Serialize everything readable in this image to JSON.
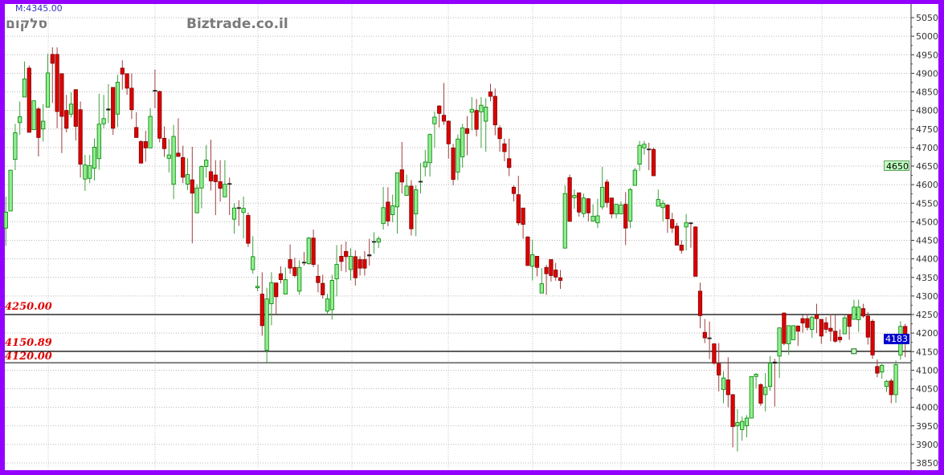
{
  "header": {
    "partial_label": "M:4345.00",
    "symbol": "סלקום",
    "watermark": "Biztrade.co.il"
  },
  "colors": {
    "frame": "#9400ff",
    "up_fill": "#90ee90",
    "up_edge": "#008000",
    "down_fill": "#dd0000",
    "down_edge": "#800000",
    "level_text": "#e00000",
    "last_price_bg": "#0000cc",
    "marker_bg": "#c0ffc0"
  },
  "chart_data": {
    "type": "candlestick",
    "title": "",
    "ylim": [
      3850,
      5050
    ],
    "y_ticks": [
      3850,
      3900,
      3950,
      4000,
      4050,
      4100,
      4150,
      4200,
      4250,
      4300,
      4350,
      4400,
      4450,
      4500,
      4550,
      4600,
      4650,
      4700,
      4750,
      4800,
      4850,
      4900,
      4950,
      5000,
      5050
    ],
    "grid": true,
    "y_axis_side": "right",
    "levels": [
      {
        "label": "4250.00",
        "value": 4250.0,
        "color": "#000000"
      },
      {
        "label": "4150.89",
        "value": 4150.89,
        "color": "#000000"
      },
      {
        "label": "4120.00",
        "value": 4120.0,
        "color": "#808080"
      }
    ],
    "axis_tags": [
      {
        "label": "4650",
        "value": 4650,
        "style": "marker"
      },
      {
        "label": "4183",
        "value": 4183,
        "style": "last"
      }
    ],
    "marker": {
      "candle": 183,
      "price": 4151
    },
    "ohlc_order": [
      "open",
      "high",
      "low",
      "close"
    ],
    "candles": [
      [
        4483,
        4568,
        4435,
        4526
      ],
      [
        4529,
        4640,
        4529,
        4639
      ],
      [
        4668,
        4764,
        4639,
        4740
      ],
      [
        4767,
        4824,
        4734,
        4783
      ],
      [
        4836,
        4932,
        4836,
        4885
      ],
      [
        4914,
        4921,
        4741,
        4741
      ],
      [
        4748,
        4826,
        4748,
        4826
      ],
      [
        4804,
        4809,
        4676,
        4727
      ],
      [
        4750,
        4817,
        4716,
        4771
      ],
      [
        4809,
        4953,
        4809,
        4901
      ],
      [
        4951,
        4970,
        4820,
        4927
      ],
      [
        4951,
        4970,
        4752,
        4797
      ],
      [
        4899,
        4899,
        4685,
        4784
      ],
      [
        4800,
        4842,
        4741,
        4752
      ],
      [
        4790,
        4849,
        4781,
        4817
      ],
      [
        4856,
        4856,
        4719,
        4757
      ],
      [
        4802,
        4824,
        4619,
        4655
      ],
      [
        4615,
        4680,
        4583,
        4653
      ],
      [
        4617,
        4680,
        4604,
        4651
      ],
      [
        4644,
        4725,
        4611,
        4701
      ],
      [
        4670,
        4845,
        4640,
        4763
      ],
      [
        4764,
        4842,
        4752,
        4778
      ],
      [
        4801,
        4871,
        4766,
        4804
      ],
      [
        4862,
        4863,
        4734,
        4752
      ],
      [
        4790,
        4896,
        4755,
        4876
      ],
      [
        4914,
        4935,
        4856,
        4898
      ],
      [
        4899,
        4899,
        4842,
        4860
      ],
      [
        4860,
        4900,
        4777,
        4802
      ],
      [
        4754,
        4795,
        4727,
        4727
      ],
      [
        4716,
        4720,
        4658,
        4658
      ],
      [
        4716,
        4745,
        4662,
        4699
      ],
      [
        4699,
        4806,
        4699,
        4784
      ],
      [
        4854,
        4910,
        4806,
        4853
      ],
      [
        4851,
        4853,
        4714,
        4725
      ],
      [
        4725,
        4757,
        4675,
        4697
      ],
      [
        4671,
        4723,
        4633,
        4680
      ],
      [
        4601,
        4761,
        4561,
        4730
      ],
      [
        4685,
        4779,
        4676,
        4676
      ],
      [
        4673,
        4705,
        4604,
        4620
      ],
      [
        4601,
        4671,
        4586,
        4627
      ],
      [
        4613,
        4702,
        4442,
        4577
      ],
      [
        4524,
        4601,
        4524,
        4591
      ],
      [
        4591,
        4651,
        4536,
        4649
      ],
      [
        4649,
        4707,
        4619,
        4666
      ],
      [
        4635,
        4721,
        4584,
        4610
      ],
      [
        4626,
        4666,
        4518,
        4608
      ],
      [
        4608,
        4666,
        4554,
        4590
      ],
      [
        4567,
        4666,
        4567,
        4601
      ],
      [
        4603,
        4619,
        4518,
        4602
      ],
      [
        4507,
        4550,
        4468,
        4537
      ],
      [
        4538,
        4558,
        4489,
        4536
      ],
      [
        4525,
        4568,
        4455,
        4536
      ],
      [
        4517,
        4525,
        4432,
        4442
      ],
      [
        4371,
        4461,
        4360,
        4406
      ],
      [
        4322,
        4353,
        4313,
        4326
      ],
      [
        4305,
        4364,
        4193,
        4220
      ],
      [
        4154,
        4322,
        4119,
        4292
      ],
      [
        4279,
        4364,
        4221,
        4336
      ],
      [
        4335,
        4335,
        4252,
        4298
      ],
      [
        4360,
        4380,
        4334,
        4344
      ],
      [
        4305,
        4377,
        4305,
        4344
      ],
      [
        4398,
        4439,
        4360,
        4375
      ],
      [
        4377,
        4403,
        4350,
        4355
      ],
      [
        4313,
        4396,
        4303,
        4377
      ],
      [
        4391,
        4418,
        4382,
        4389
      ],
      [
        4387,
        4459,
        4384,
        4456
      ],
      [
        4456,
        4479,
        4378,
        4385
      ],
      [
        4353,
        4385,
        4310,
        4336
      ],
      [
        4334,
        4357,
        4293,
        4303
      ],
      [
        4259,
        4306,
        4250,
        4292
      ],
      [
        4263,
        4357,
        4236,
        4342
      ],
      [
        4346,
        4437,
        4299,
        4385
      ],
      [
        4407,
        4439,
        4367,
        4393
      ],
      [
        4420,
        4447,
        4364,
        4406
      ],
      [
        4371,
        4429,
        4342,
        4407
      ],
      [
        4406,
        4423,
        4328,
        4349
      ],
      [
        4398,
        4407,
        4355,
        4375
      ],
      [
        4398,
        4421,
        4355,
        4375
      ],
      [
        4411,
        4454,
        4382,
        4408
      ],
      [
        4445,
        4472,
        4414,
        4447
      ],
      [
        4445,
        4461,
        4429,
        4454
      ],
      [
        4495,
        4594,
        4479,
        4538
      ],
      [
        4553,
        4593,
        4488,
        4502
      ],
      [
        4519,
        4573,
        4499,
        4543
      ],
      [
        4540,
        4632,
        4468,
        4632
      ],
      [
        4640,
        4715,
        4576,
        4607
      ],
      [
        4571,
        4627,
        4571,
        4596
      ],
      [
        4596,
        4612,
        4463,
        4481
      ],
      [
        4521,
        4598,
        4461,
        4586
      ],
      [
        4607,
        4658,
        4576,
        4609
      ],
      [
        4648,
        4694,
        4622,
        4661
      ],
      [
        4659,
        4738,
        4622,
        4735
      ],
      [
        4764,
        4797,
        4699,
        4782
      ],
      [
        4812,
        4814,
        4754,
        4792
      ],
      [
        4787,
        4874,
        4761,
        4771
      ],
      [
        4771,
        4773,
        4670,
        4710
      ],
      [
        4699,
        4710,
        4598,
        4614
      ],
      [
        4634,
        4735,
        4612,
        4723
      ],
      [
        4675,
        4764,
        4646,
        4753
      ],
      [
        4751,
        4785,
        4679,
        4738
      ],
      [
        4795,
        4836,
        4746,
        4803
      ],
      [
        4800,
        4831,
        4730,
        4749
      ],
      [
        4796,
        4836,
        4699,
        4814
      ],
      [
        4771,
        4833,
        4689,
        4809
      ],
      [
        4850,
        4872,
        4825,
        4838
      ],
      [
        4838,
        4859,
        4733,
        4761
      ],
      [
        4753,
        4760,
        4689,
        4724
      ],
      [
        4710,
        4724,
        4663,
        4689
      ],
      [
        4670,
        4724,
        4623,
        4646
      ],
      [
        4593,
        4598,
        4555,
        4576
      ],
      [
        4573,
        4624,
        4490,
        4497
      ],
      [
        4537,
        4537,
        4454,
        4493
      ],
      [
        4459,
        4461,
        4382,
        4382
      ],
      [
        4380,
        4452,
        4342,
        4411
      ],
      [
        4407,
        4407,
        4353,
        4377
      ],
      [
        4308,
        4375,
        4308,
        4333
      ],
      [
        4377,
        4384,
        4303,
        4360
      ],
      [
        4398,
        4398,
        4339,
        4355
      ],
      [
        4370,
        4389,
        4341,
        4351
      ],
      [
        4349,
        4370,
        4319,
        4342
      ],
      [
        4429,
        4598,
        4429,
        4576
      ],
      [
        4619,
        4627,
        4501,
        4501
      ],
      [
        4565,
        4587,
        4535,
        4571
      ],
      [
        4578,
        4578,
        4514,
        4526
      ],
      [
        4522,
        4576,
        4511,
        4564
      ],
      [
        4562,
        4564,
        4501,
        4524
      ],
      [
        4502,
        4547,
        4502,
        4515
      ],
      [
        4497,
        4562,
        4483,
        4516
      ],
      [
        4540,
        4648,
        4533,
        4593
      ],
      [
        4607,
        4614,
        4538,
        4552
      ],
      [
        4564,
        4564,
        4509,
        4521
      ],
      [
        4521,
        4547,
        4509,
        4547
      ],
      [
        4521,
        4555,
        4521,
        4545
      ],
      [
        4547,
        4580,
        4437,
        4483
      ],
      [
        4502,
        4591,
        4483,
        4587
      ],
      [
        4598,
        4645,
        4598,
        4639
      ],
      [
        4655,
        4718,
        4637,
        4706
      ],
      [
        4699,
        4718,
        4681,
        4709
      ],
      [
        4696,
        4713,
        4639,
        4695
      ],
      [
        4695,
        4699,
        4624,
        4624
      ],
      [
        4542,
        4587,
        4542,
        4560
      ],
      [
        4538,
        4558,
        4501,
        4550
      ],
      [
        4545,
        4547,
        4470,
        4508
      ],
      [
        4506,
        4524,
        4470,
        4483
      ],
      [
        4488,
        4497,
        4437,
        4437
      ],
      [
        4437,
        4450,
        4414,
        4423
      ],
      [
        4486,
        4521,
        4423,
        4497
      ],
      [
        4497,
        4499,
        4430,
        4495
      ],
      [
        4486,
        4488,
        4353,
        4353
      ],
      [
        4313,
        4336,
        4213,
        4247
      ],
      [
        4202,
        4238,
        4173,
        4187
      ],
      [
        4187,
        4231,
        4130,
        4185
      ],
      [
        4171,
        4173,
        4115,
        4119
      ],
      [
        4118,
        4173,
        4043,
        4087
      ],
      [
        4048,
        4097,
        4011,
        4079
      ],
      [
        4074,
        4135,
        4000,
        4034
      ],
      [
        4034,
        4036,
        3892,
        3948
      ],
      [
        3950,
        3995,
        3881,
        3959
      ],
      [
        3940,
        3975,
        3910,
        3962
      ],
      [
        3950,
        3979,
        3919,
        3971
      ],
      [
        3971,
        4083,
        3971,
        4083
      ],
      [
        4083,
        4092,
        4051,
        4089
      ],
      [
        4061,
        4065,
        4004,
        4011
      ],
      [
        4034,
        4092,
        3989,
        4054
      ],
      [
        4056,
        4138,
        4045,
        4119
      ],
      [
        4122,
        4131,
        4002,
        4119
      ],
      [
        4138,
        4215,
        4079,
        4214
      ],
      [
        4254,
        4256,
        4167,
        4172
      ],
      [
        4171,
        4221,
        4141,
        4220
      ],
      [
        4182,
        4221,
        4182,
        4220
      ],
      [
        4219,
        4221,
        4165,
        4205
      ],
      [
        4239,
        4249,
        4201,
        4227
      ],
      [
        4239,
        4250,
        4207,
        4215
      ],
      [
        4210,
        4246,
        4187,
        4243
      ],
      [
        4249,
        4279,
        4200,
        4239
      ],
      [
        4237,
        4237,
        4171,
        4192
      ],
      [
        4228,
        4243,
        4200,
        4210
      ],
      [
        4213,
        4251,
        4178,
        4205
      ],
      [
        4205,
        4250,
        4174,
        4178
      ],
      [
        4189,
        4210,
        4174,
        4182
      ],
      [
        4198,
        4250,
        4198,
        4241
      ],
      [
        4250,
        4250,
        4182,
        4218
      ],
      [
        4237,
        4290,
        4237,
        4270
      ],
      [
        4236,
        4290,
        4203,
        4270
      ],
      [
        4266,
        4279,
        4241,
        4246
      ],
      [
        4246,
        4257,
        4169,
        4189
      ],
      [
        4232,
        4237,
        4131,
        4141
      ],
      [
        4110,
        4129,
        4081,
        4092
      ],
      [
        4095,
        4117,
        4077,
        4113
      ],
      [
        4056,
        4074,
        4041,
        4070
      ],
      [
        4071,
        4077,
        4011,
        4034
      ],
      [
        4034,
        4126,
        4012,
        4115
      ],
      [
        4141,
        4232,
        4128,
        4218
      ],
      [
        4218,
        4225,
        4135,
        4183
      ]
    ]
  }
}
